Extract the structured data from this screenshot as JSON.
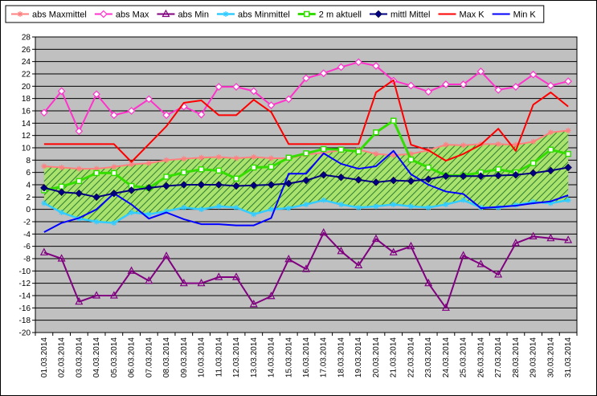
{
  "chart_data": {
    "type": "line",
    "title": "",
    "xlabel": "",
    "ylabel": "",
    "ylim": [
      -20,
      28
    ],
    "ytick_step": 2,
    "grid": "horizontal",
    "legend_position": "top",
    "plot_background": "#c0c0c0",
    "band_fill": {
      "fill": "#a9e26d",
      "hatch": "#2e7d32",
      "lower_series": "abs Minmittel",
      "upper_series": "abs Maxmittel"
    },
    "categories": [
      "01.03.2014",
      "02.03.2014",
      "03.03.2014",
      "04.03.2014",
      "05.03.2014",
      "06.03.2014",
      "07.03.2014",
      "08.03.2014",
      "09.03.2014",
      "10.03.2014",
      "11.03.2014",
      "12.03.2014",
      "13.03.2014",
      "14.03.2014",
      "15.03.2014",
      "16.03.2014",
      "17.03.2014",
      "18.03.2014",
      "19.03.2014",
      "20.03.2014",
      "21.03.2014",
      "22.03.2014",
      "23.03.2014",
      "24.03.2014",
      "25.03.2014",
      "26.03.2014",
      "27.03.2014",
      "28.03.2014",
      "29.03.2014",
      "30.03.2014",
      "31.03.2014"
    ],
    "series": [
      {
        "name": "abs Maxmittel",
        "color": "#ff8080",
        "marker": "star",
        "width": 2,
        "values": [
          7.0,
          6.8,
          6.6,
          6.6,
          6.9,
          7.3,
          7.5,
          8.0,
          8.2,
          8.4,
          8.5,
          8.3,
          8.5,
          8.3,
          8.3,
          8.9,
          9.2,
          9.6,
          9.7,
          9.0,
          8.8,
          9.0,
          9.6,
          10.5,
          10.4,
          10.6,
          10.6,
          10.5,
          11.0,
          12.5,
          12.8
        ]
      },
      {
        "name": "abs Max",
        "color": "#ff33cc",
        "marker": "diamond-open",
        "width": 2,
        "values": [
          15.7,
          19.2,
          12.7,
          18.7,
          15.3,
          16.0,
          17.9,
          15.3,
          16.7,
          15.4,
          19.9,
          19.9,
          19.2,
          16.9,
          17.9,
          21.3,
          22.1,
          23.1,
          23.9,
          23.3,
          20.9,
          20.1,
          19.1,
          20.3,
          20.3,
          22.4,
          19.4,
          19.9,
          21.9,
          20.1,
          20.8
        ]
      },
      {
        "name": "abs Min",
        "color": "#800080",
        "marker": "triangle-open",
        "width": 2,
        "values": [
          -7.0,
          -8.0,
          -15.0,
          -14.0,
          -14.0,
          -10.0,
          -11.6,
          -7.6,
          -12.0,
          -12.0,
          -11.0,
          -11.0,
          -15.4,
          -14.1,
          -8.1,
          -9.7,
          -3.8,
          -6.8,
          -9.1,
          -4.8,
          -7.0,
          -6.0,
          -12.0,
          -16.0,
          -7.5,
          -8.9,
          -10.6,
          -5.5,
          -4.4,
          -4.7,
          -5.0
        ]
      },
      {
        "name": "abs Minmittel",
        "color": "#33ccff",
        "marker": "star",
        "width": 2.5,
        "values": [
          1.0,
          -0.5,
          -1.5,
          -2.0,
          -2.2,
          -0.5,
          -0.8,
          -0.3,
          0.3,
          0.0,
          0.5,
          0.3,
          -0.8,
          0.0,
          0.2,
          0.8,
          1.5,
          0.8,
          0.3,
          0.5,
          0.8,
          0.5,
          0.3,
          0.8,
          1.5,
          0.3,
          0.3,
          0.7,
          1.2,
          1.0,
          1.5
        ]
      },
      {
        "name": "2 m aktuell",
        "color": "#33dd00",
        "marker": "square-open",
        "width": 3,
        "values": [
          3.1,
          3.7,
          4.6,
          5.9,
          5.9,
          3.8,
          3.5,
          5.3,
          6.0,
          6.5,
          6.3,
          5.0,
          6.8,
          6.9,
          8.4,
          9.1,
          9.8,
          9.7,
          9.4,
          12.5,
          14.4,
          8.1,
          6.8,
          5.5,
          5.5,
          6.0,
          6.5,
          6.0,
          7.5,
          9.7,
          9.0
        ]
      },
      {
        "name": "mittl Mittel",
        "color": "#000080",
        "marker": "diamond-filled",
        "width": 2,
        "values": [
          3.5,
          2.8,
          2.6,
          2.0,
          2.6,
          3.1,
          3.5,
          3.8,
          4.0,
          4.0,
          4.0,
          3.8,
          3.9,
          4.0,
          4.2,
          4.7,
          5.6,
          5.2,
          4.8,
          4.4,
          4.7,
          4.6,
          4.9,
          5.4,
          5.4,
          5.4,
          5.5,
          5.6,
          5.9,
          6.3,
          6.8
        ]
      },
      {
        "name": "Max K",
        "color": "#ff0000",
        "marker": "none",
        "width": 2,
        "values": [
          10.6,
          10.6,
          10.6,
          10.6,
          10.6,
          7.7,
          10.6,
          13.5,
          17.3,
          17.7,
          15.3,
          15.3,
          17.8,
          15.8,
          10.6,
          10.6,
          10.6,
          10.6,
          10.6,
          19.0,
          21.0,
          10.5,
          9.6,
          7.9,
          9.0,
          10.5,
          13.1,
          9.5,
          17.0,
          19.0,
          16.7
        ]
      },
      {
        "name": "Min K",
        "color": "#0000ff",
        "marker": "none",
        "width": 2,
        "values": [
          -3.7,
          -2.2,
          -1.4,
          0.0,
          2.6,
          0.8,
          -1.5,
          -0.5,
          -1.6,
          -2.4,
          -2.4,
          -2.6,
          -2.6,
          -1.4,
          5.8,
          5.8,
          9.1,
          7.4,
          6.6,
          7.0,
          9.5,
          5.7,
          4.0,
          2.9,
          2.5,
          0.2,
          0.4,
          0.6,
          1.0,
          1.3,
          2.3
        ]
      }
    ]
  }
}
